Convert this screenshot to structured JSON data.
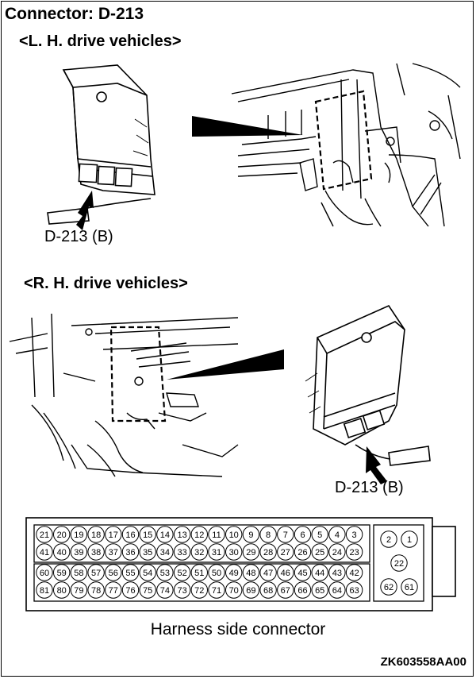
{
  "title": "Connector: D-213",
  "sections": {
    "lhd": "<L. H. drive vehicles>",
    "rhd": "<R. H. drive vehicles>"
  },
  "labels": {
    "lhd_connector": "D-213 (B)",
    "rhd_connector": "D-213 (B)"
  },
  "connector": {
    "caption": "Harness side connector",
    "rows": [
      [
        "21",
        "20",
        "19",
        "18",
        "17",
        "16",
        "15",
        "14",
        "13",
        "12",
        "11",
        "10",
        "9",
        "8",
        "7",
        "6",
        "5",
        "4",
        "3"
      ],
      [
        "41",
        "40",
        "39",
        "38",
        "37",
        "36",
        "35",
        "34",
        "33",
        "32",
        "31",
        "30",
        "29",
        "28",
        "27",
        "26",
        "25",
        "24",
        "23"
      ],
      [
        "60",
        "59",
        "58",
        "57",
        "56",
        "55",
        "54",
        "53",
        "52",
        "51",
        "50",
        "49",
        "48",
        "47",
        "46",
        "45",
        "44",
        "43",
        "42"
      ],
      [
        "81",
        "80",
        "79",
        "78",
        "77",
        "76",
        "75",
        "74",
        "73",
        "72",
        "71",
        "70",
        "69",
        "68",
        "67",
        "66",
        "65",
        "64",
        "63"
      ]
    ],
    "side_pins": {
      "top": [
        "2",
        "1"
      ],
      "middle": "22",
      "bottom": [
        "62",
        "61"
      ]
    }
  },
  "figure_code": "ZK603558AA00"
}
